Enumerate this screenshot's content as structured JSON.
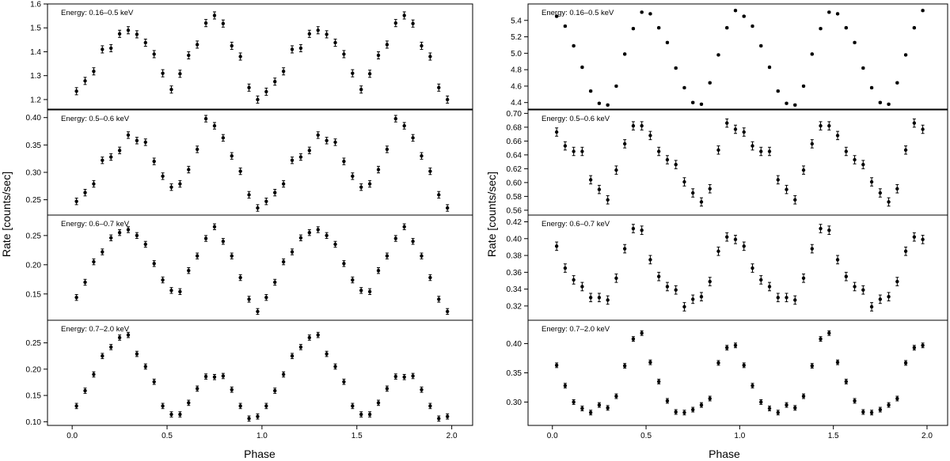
{
  "figure": {
    "xlabel": "Phase",
    "ylabel": "Rate [counts/sec]"
  },
  "chart_data": [
    {
      "type": "scatter",
      "xlabel": "Phase",
      "ylabel": "Rate [counts/sec]",
      "xlim": [
        0,
        2
      ],
      "xticks": [
        0.0,
        0.5,
        1.0,
        1.5,
        2.0
      ],
      "xtick_labels": [
        "0.0",
        "0.5",
        "1.0",
        "1.5",
        "2.0"
      ],
      "panels": [
        {
          "label": "Energy: 0.16–0.5 keV",
          "ylim": [
            1.16,
            1.6
          ],
          "yticks": [
            1.2,
            1.3,
            1.4,
            1.5,
            1.6
          ],
          "ytick_labels": [
            "1.2",
            "1.3",
            "1.4",
            "1.5",
            "1.6"
          ],
          "err": 0.015,
          "y": [
            1.235,
            1.278,
            1.318,
            1.41,
            1.415,
            1.475,
            1.49,
            1.473,
            1.438,
            1.39,
            1.31,
            1.242,
            1.308,
            1.385,
            1.43,
            1.52,
            1.552,
            1.518,
            1.425,
            1.38,
            1.25,
            1.2,
            1.233,
            1.275,
            1.318,
            1.41,
            1.415,
            1.475,
            1.49,
            1.473,
            1.438,
            1.39,
            1.31,
            1.242,
            1.308,
            1.385,
            1.43,
            1.52,
            1.552,
            1.518,
            1.425,
            1.38,
            1.25,
            1.2
          ]
        },
        {
          "label": "Energy: 0.5–0.6 keV",
          "ylim": [
            0.222,
            0.414
          ],
          "yticks": [
            0.25,
            0.3,
            0.35,
            0.4
          ],
          "ytick_labels": [
            "0.25",
            "0.30",
            "0.35",
            "0.40"
          ],
          "err": 0.006,
          "y": [
            0.247,
            0.263,
            0.279,
            0.322,
            0.328,
            0.34,
            0.368,
            0.358,
            0.355,
            0.32,
            0.293,
            0.273,
            0.279,
            0.305,
            0.342,
            0.398,
            0.385,
            0.363,
            0.33,
            0.302,
            0.259,
            0.235,
            0.247,
            0.263,
            0.279,
            0.322,
            0.328,
            0.34,
            0.368,
            0.358,
            0.355,
            0.32,
            0.293,
            0.273,
            0.279,
            0.305,
            0.342,
            0.398,
            0.385,
            0.363,
            0.33,
            0.302,
            0.259,
            0.235
          ]
        },
        {
          "label": "Energy: 0.6–0.7 keV",
          "ylim": [
            0.105,
            0.285
          ],
          "yticks": [
            0.15,
            0.2,
            0.25
          ],
          "ytick_labels": [
            "0.15",
            "0.20",
            "0.25"
          ],
          "err": 0.005,
          "y": [
            0.144,
            0.17,
            0.205,
            0.222,
            0.246,
            0.255,
            0.26,
            0.25,
            0.235,
            0.202,
            0.174,
            0.156,
            0.154,
            0.19,
            0.215,
            0.245,
            0.265,
            0.24,
            0.215,
            0.178,
            0.141,
            0.12,
            0.144,
            0.17,
            0.205,
            0.222,
            0.246,
            0.255,
            0.26,
            0.25,
            0.235,
            0.202,
            0.174,
            0.156,
            0.154,
            0.19,
            0.215,
            0.245,
            0.265,
            0.24,
            0.215,
            0.178,
            0.141,
            0.12
          ]
        },
        {
          "label": "Energy: 0.7–2.0 keV",
          "ylim": [
            0.093,
            0.293
          ],
          "yticks": [
            0.1,
            0.15,
            0.2,
            0.25
          ],
          "ytick_labels": [
            "0.10",
            "0.15",
            "0.20",
            "0.25"
          ],
          "err": 0.005,
          "y": [
            0.13,
            0.159,
            0.19,
            0.225,
            0.242,
            0.26,
            0.265,
            0.229,
            0.205,
            0.176,
            0.13,
            0.114,
            0.114,
            0.136,
            0.163,
            0.186,
            0.185,
            0.187,
            0.161,
            0.13,
            0.106,
            0.11,
            0.13,
            0.159,
            0.19,
            0.225,
            0.242,
            0.26,
            0.265,
            0.229,
            0.205,
            0.176,
            0.13,
            0.114,
            0.114,
            0.136,
            0.163,
            0.186,
            0.185,
            0.187,
            0.161,
            0.13,
            0.106,
            0.11
          ]
        }
      ]
    },
    {
      "type": "scatter",
      "xlabel": "Phase",
      "ylabel": "Rate [counts/sec]",
      "xlim": [
        0,
        2
      ],
      "xticks": [
        0.0,
        0.5,
        1.0,
        1.5,
        2.0
      ],
      "xtick_labels": [
        "0.0",
        "0.5",
        "1.0",
        "1.5",
        "2.0"
      ],
      "panels": [
        {
          "label": "Energy: 0.16–0.5 keV",
          "ylim": [
            4.32,
            5.6
          ],
          "yticks": [
            4.4,
            4.6,
            4.8,
            5.0,
            5.2,
            5.4
          ],
          "ytick_labels": [
            "4.4",
            "4.6",
            "4.8",
            "5.0",
            "5.2",
            "5.4"
          ],
          "err": 0.01,
          "y": [
            5.45,
            5.33,
            5.09,
            4.83,
            4.54,
            4.39,
            4.37,
            4.6,
            4.99,
            5.3,
            5.5,
            5.48,
            5.31,
            5.13,
            4.82,
            4.58,
            4.4,
            4.38,
            4.64,
            4.98,
            5.31,
            5.52,
            5.45,
            5.33,
            5.09,
            4.83,
            4.54,
            4.39,
            4.37,
            4.6,
            4.99,
            5.3,
            5.5,
            5.48,
            5.31,
            5.13,
            4.82,
            4.58,
            4.4,
            4.38,
            4.64,
            4.98,
            5.31,
            5.52
          ]
        },
        {
          "label": "Energy: 0.5–0.6 keV",
          "ylim": [
            0.553,
            0.705
          ],
          "yticks": [
            0.56,
            0.58,
            0.6,
            0.62,
            0.64,
            0.66,
            0.68,
            0.7
          ],
          "ytick_labels": [
            "0.56",
            "0.58",
            "0.60",
            "0.62",
            "0.64",
            "0.66",
            "0.68",
            "0.70"
          ],
          "err": 0.006,
          "y": [
            0.673,
            0.653,
            0.645,
            0.645,
            0.604,
            0.59,
            0.575,
            0.618,
            0.656,
            0.682,
            0.682,
            0.668,
            0.645,
            0.633,
            0.626,
            0.601,
            0.585,
            0.572,
            0.591,
            0.647,
            0.686,
            0.677,
            0.673,
            0.653,
            0.645,
            0.645,
            0.604,
            0.59,
            0.575,
            0.618,
            0.656,
            0.682,
            0.682,
            0.668,
            0.645,
            0.633,
            0.626,
            0.601,
            0.585,
            0.572,
            0.591,
            0.647,
            0.686,
            0.677
          ]
        },
        {
          "label": "Energy: 0.6–0.7 keV",
          "ylim": [
            0.303,
            0.428
          ],
          "yticks": [
            0.32,
            0.34,
            0.36,
            0.38,
            0.4,
            0.42
          ],
          "ytick_labels": [
            "0.32",
            "0.34",
            "0.36",
            "0.38",
            "0.40",
            "0.42"
          ],
          "err": 0.005,
          "y": [
            0.391,
            0.365,
            0.351,
            0.343,
            0.33,
            0.33,
            0.327,
            0.353,
            0.388,
            0.412,
            0.41,
            0.375,
            0.355,
            0.343,
            0.339,
            0.319,
            0.328,
            0.331,
            0.349,
            0.385,
            0.402,
            0.399,
            0.391,
            0.365,
            0.351,
            0.343,
            0.33,
            0.33,
            0.327,
            0.353,
            0.388,
            0.412,
            0.41,
            0.375,
            0.355,
            0.343,
            0.339,
            0.319,
            0.328,
            0.331,
            0.349,
            0.385,
            0.402,
            0.399
          ]
        },
        {
          "label": "Energy: 0.7–2.0 keV",
          "ylim": [
            0.26,
            0.44
          ],
          "yticks": [
            0.3,
            0.35,
            0.4
          ],
          "ytick_labels": [
            "0.30",
            "0.35",
            "0.40"
          ],
          "err": 0.004,
          "y": [
            0.363,
            0.328,
            0.3,
            0.289,
            0.282,
            0.295,
            0.29,
            0.31,
            0.362,
            0.408,
            0.418,
            0.368,
            0.335,
            0.302,
            0.283,
            0.282,
            0.287,
            0.295,
            0.306,
            0.367,
            0.393,
            0.397,
            0.363,
            0.328,
            0.3,
            0.289,
            0.282,
            0.295,
            0.29,
            0.31,
            0.362,
            0.408,
            0.418,
            0.368,
            0.335,
            0.302,
            0.283,
            0.282,
            0.287,
            0.295,
            0.306,
            0.367,
            0.393,
            0.397
          ]
        }
      ]
    }
  ]
}
